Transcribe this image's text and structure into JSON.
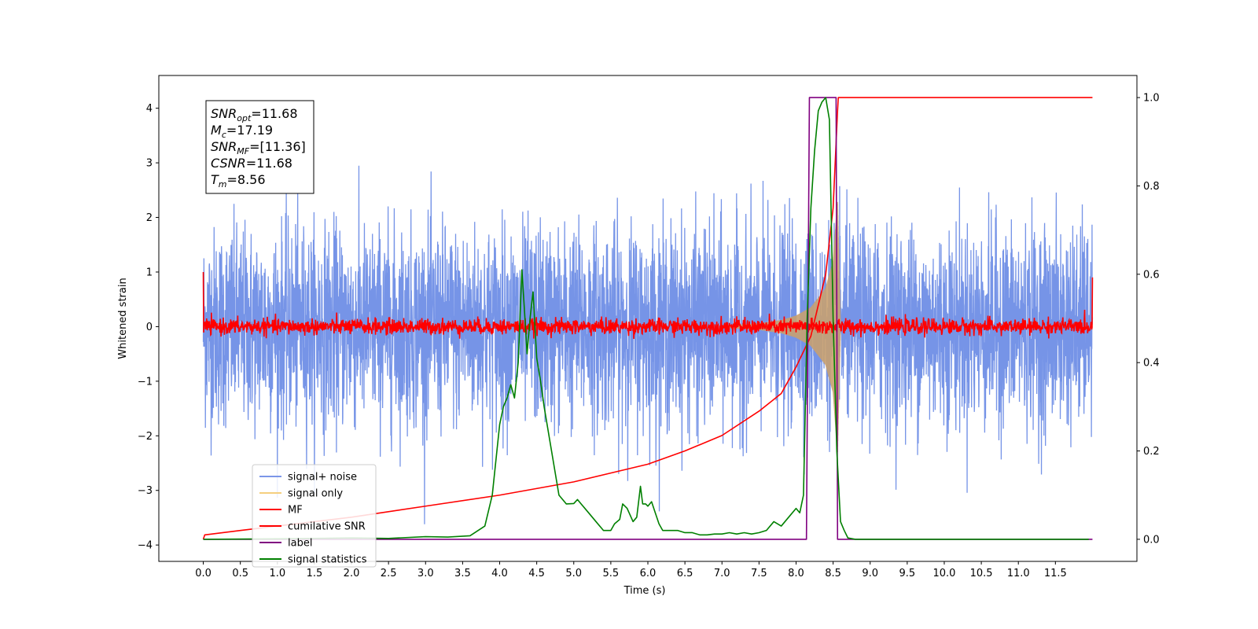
{
  "chart_data": {
    "type": "line",
    "xlabel": "Time (s)",
    "ylabel": "Whitened strain",
    "xlim": [
      -0.6,
      12.6
    ],
    "ylim": [
      -4.3,
      4.6
    ],
    "y2lim": [
      -0.05,
      1.05
    ],
    "x_ticks": [
      "0.0",
      "0.5",
      "1.0",
      "1.5",
      "2.0",
      "2.5",
      "3.0",
      "3.5",
      "4.0",
      "4.5",
      "5.0",
      "5.5",
      "6.0",
      "6.5",
      "7.0",
      "7.5",
      "8.0",
      "8.5",
      "9.0",
      "9.5",
      "10.0",
      "10.5",
      "11.0",
      "11.5"
    ],
    "y_ticks": [
      "4",
      "3",
      "2",
      "1",
      "0",
      "−1",
      "−2",
      "−3",
      "−4"
    ],
    "y2_ticks": [
      "1.0",
      "0.8",
      "0.6",
      "0.4",
      "0.2",
      "0.0"
    ],
    "annotation": {
      "lines": [
        {
          "base": "SNR",
          "sub": "opt",
          "rest": "=11.68"
        },
        {
          "base": "M",
          "sub": "c",
          "rest": "=17.19"
        },
        {
          "base": "SNR",
          "sub": "MF",
          "rest": "=[11.36]"
        },
        {
          "base": "CSNR",
          "sub": "",
          "rest": "=11.68"
        },
        {
          "base": "T",
          "sub": "m",
          "rest": "=8.56"
        }
      ]
    },
    "legend": {
      "position": "lower-left",
      "entries": [
        {
          "label": "signal+ noise",
          "color": "#7b96e8"
        },
        {
          "label": "signal only",
          "color": "#f5cf7e"
        },
        {
          "label": "MF",
          "color": "#ff0000"
        },
        {
          "label": "cumilative SNR",
          "color": "#ff0000"
        },
        {
          "label": "label",
          "color": "#800080"
        },
        {
          "label": "signal statistics",
          "color": "#008000"
        }
      ]
    },
    "series": [
      {
        "name": "signal+ noise",
        "axis": "left",
        "color": "#6f8ee6",
        "description_stats": {
          "t_range": [
            0.0,
            12.0
          ],
          "typical_std": 0.9,
          "peak_abs": 4.2
        }
      },
      {
        "name": "signal only",
        "axis": "left",
        "color": "#c8a070",
        "envelope": {
          "x": [
            7.0,
            7.5,
            7.8,
            8.0,
            8.2,
            8.4,
            8.5,
            8.56,
            8.6
          ],
          "amp": [
            0.02,
            0.06,
            0.12,
            0.2,
            0.35,
            0.7,
            1.2,
            2.3,
            0.0
          ]
        }
      },
      {
        "name": "MF",
        "axis": "left",
        "color": "#ff0000",
        "description_stats": {
          "baseline": 0.0,
          "noise_amp": 0.12,
          "start_value": 1.0,
          "end_value": 0.9
        }
      },
      {
        "name": "cumilative SNR",
        "axis": "right",
        "color": "#ff0000",
        "x": [
          0.0,
          0.02,
          0.5,
          1.0,
          2.0,
          3.0,
          4.0,
          5.0,
          5.5,
          6.0,
          6.5,
          7.0,
          7.5,
          7.8,
          8.0,
          8.2,
          8.4,
          8.5,
          8.56,
          8.57,
          12.0
        ],
        "y": [
          0.0,
          0.01,
          0.02,
          0.03,
          0.05,
          0.075,
          0.1,
          0.13,
          0.15,
          0.17,
          0.2,
          0.235,
          0.29,
          0.33,
          0.39,
          0.46,
          0.6,
          0.75,
          0.97,
          1.0,
          1.0
        ]
      },
      {
        "name": "label",
        "axis": "right",
        "color": "#800080",
        "x": [
          0.0,
          8.14,
          8.18,
          8.54,
          8.56,
          12.0
        ],
        "y": [
          0.0,
          0.0,
          1.0,
          1.0,
          0.0,
          0.0
        ]
      },
      {
        "name": "signal statistics",
        "axis": "right",
        "color": "#008000",
        "x": [
          0.0,
          1.0,
          2.0,
          2.5,
          3.0,
          3.3,
          3.6,
          3.8,
          3.9,
          4.0,
          4.05,
          4.1,
          4.15,
          4.2,
          4.25,
          4.3,
          4.33,
          4.37,
          4.41,
          4.45,
          4.5,
          4.55,
          4.6,
          4.65,
          4.7,
          4.8,
          4.9,
          5.0,
          5.05,
          5.1,
          5.2,
          5.3,
          5.4,
          5.5,
          5.55,
          5.62,
          5.66,
          5.72,
          5.8,
          5.85,
          5.9,
          5.93,
          5.97,
          6.0,
          6.05,
          6.1,
          6.15,
          6.2,
          6.3,
          6.4,
          6.5,
          6.6,
          6.7,
          6.8,
          6.9,
          7.0,
          7.1,
          7.2,
          7.3,
          7.4,
          7.5,
          7.6,
          7.7,
          7.8,
          7.9,
          8.0,
          8.05,
          8.1,
          8.15,
          8.2,
          8.25,
          8.3,
          8.35,
          8.4,
          8.45,
          8.5,
          8.55,
          8.6,
          8.65,
          8.7,
          8.8,
          9.0,
          10.0,
          11.0,
          11.95
        ],
        "y": [
          0.0,
          0.001,
          0.003,
          0.002,
          0.006,
          0.005,
          0.008,
          0.03,
          0.1,
          0.26,
          0.3,
          0.32,
          0.35,
          0.32,
          0.4,
          0.61,
          0.53,
          0.42,
          0.5,
          0.56,
          0.41,
          0.36,
          0.3,
          0.25,
          0.2,
          0.1,
          0.08,
          0.081,
          0.09,
          0.08,
          0.06,
          0.04,
          0.02,
          0.02,
          0.035,
          0.045,
          0.08,
          0.07,
          0.04,
          0.05,
          0.12,
          0.08,
          0.08,
          0.075,
          0.085,
          0.06,
          0.035,
          0.02,
          0.02,
          0.02,
          0.015,
          0.015,
          0.01,
          0.01,
          0.012,
          0.012,
          0.015,
          0.012,
          0.015,
          0.012,
          0.015,
          0.02,
          0.04,
          0.03,
          0.05,
          0.07,
          0.06,
          0.1,
          0.5,
          0.75,
          0.88,
          0.97,
          0.99,
          1.0,
          0.95,
          0.5,
          0.2,
          0.04,
          0.02,
          0.003,
          0.0,
          0.0,
          0.0,
          0.0,
          0.0
        ]
      }
    ]
  }
}
